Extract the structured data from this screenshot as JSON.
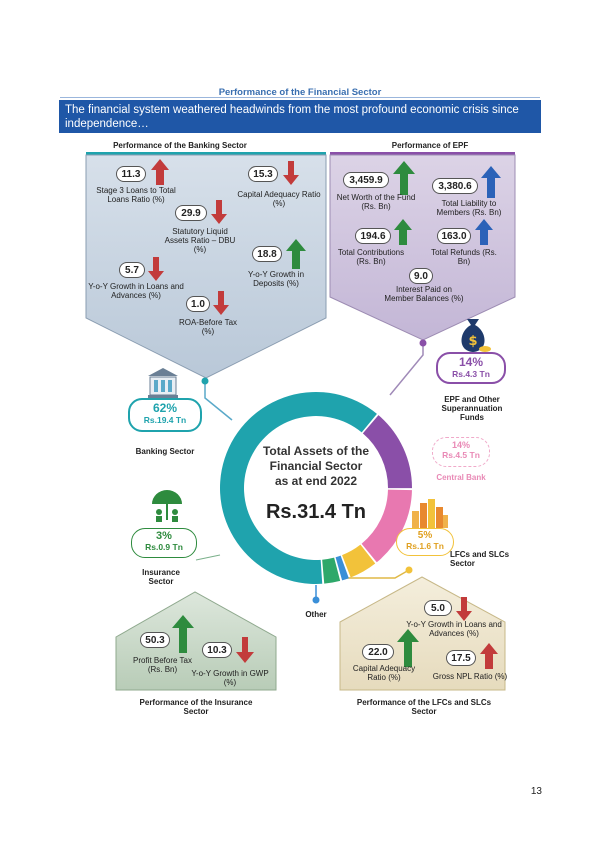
{
  "header": {
    "title": "Performance of the Financial Sector",
    "banner": "The financial system weathered headwinds from the most profound economic crisis since independence…"
  },
  "banking_performance": {
    "title": "Performance of the Banking Sector",
    "items": [
      {
        "value": "11.3",
        "label": "Stage 3 Loans to Total Loans Ratio (%)",
        "trend": "up",
        "color": "#c23b3b"
      },
      {
        "value": "15.3",
        "label": "Capital Adequacy Ratio (%)",
        "trend": "down",
        "color": "#c23b3b"
      },
      {
        "value": "29.9",
        "label": "Statutory Liquid Assets Ratio – DBU (%)",
        "trend": "down",
        "color": "#c23b3b"
      },
      {
        "value": "5.7",
        "label": "Y-o-Y Growth in Loans and Advances (%)",
        "trend": "down",
        "color": "#c23b3b"
      },
      {
        "value": "18.8",
        "label": "Y-o-Y Growth in Deposits (%)",
        "trend": "up",
        "color": "#2e8b3e"
      },
      {
        "value": "1.0",
        "label": "ROA-Before Tax (%)",
        "trend": "down",
        "color": "#c23b3b"
      }
    ]
  },
  "epf_performance": {
    "title": "Performance of EPF",
    "items": [
      {
        "value": "3,459.9",
        "label": "Net Worth of the Fund (Rs. Bn)",
        "trend": "up",
        "color": "#2e8b3e"
      },
      {
        "value": "3,380.6",
        "label": "Total Liability to Members (Rs. Bn)",
        "trend": "up",
        "color": "#2b62b8"
      },
      {
        "value": "194.6",
        "label": "Total Contributions (Rs. Bn)",
        "trend": "up",
        "color": "#2e8b3e"
      },
      {
        "value": "163.0",
        "label": "Total Refunds (Rs. Bn)",
        "trend": "up",
        "color": "#2b62b8"
      },
      {
        "value": "9.0",
        "label": "Interest Paid on Member Balances (%)",
        "trend": "none",
        "color": "#555555"
      }
    ]
  },
  "center": {
    "title": "Total Assets of the Financial Sector as at end 2022",
    "title_lines": [
      "Total Assets of the",
      "Financial Sector",
      "as at end 2022"
    ],
    "total": "Rs.31.4 Tn"
  },
  "segments": [
    {
      "name": "Banking Sector",
      "pct": "62%",
      "amount": "Rs.19.4 Tn",
      "share": 62,
      "color": "#1fa3ad"
    },
    {
      "name": "EPF and Other Superannuation Funds",
      "pct": "14%",
      "amount": "Rs.4.3 Tn",
      "share": 14,
      "color": "#8a4fa8"
    },
    {
      "name": "Central Bank",
      "pct": "14%",
      "amount": "Rs.4.5 Tn",
      "share": 14,
      "color": "#e878b0"
    },
    {
      "name": "LFCs and SLCs Sector",
      "pct": "5%",
      "amount": "Rs.1.6 Tn",
      "share": 5,
      "color": "#f2c23a"
    },
    {
      "name": "Other",
      "pct": "",
      "amount": "",
      "share": 1.5,
      "color": "#3a8fd8"
    },
    {
      "name": "Insurance Sector",
      "pct": "3%",
      "amount": "Rs.0.9 Tn",
      "share": 3,
      "color": "#2ea86a"
    }
  ],
  "labels": {
    "banking": "Banking Sector",
    "epf": "EPF and Other Superannuation Funds",
    "central": "Central Bank",
    "lfc": "LFCs and SLCs Sector",
    "insurance": "Insurance Sector",
    "other": "Other"
  },
  "insurance_performance": {
    "title": "Performance of the Insurance Sector",
    "items": [
      {
        "value": "50.3",
        "label": "Profit Before Tax (Rs. Bn)",
        "trend": "up",
        "color": "#2e8b3e"
      },
      {
        "value": "10.3",
        "label": "Y-o-Y Growth in GWP (%)",
        "trend": "down",
        "color": "#c23b3b"
      }
    ]
  },
  "lfc_performance": {
    "title": "Performance of the LFCs and SLCs Sector",
    "items": [
      {
        "value": "5.0",
        "label": "Y-o-Y Growth in Loans and Advances (%)",
        "trend": "down",
        "color": "#c23b3b"
      },
      {
        "value": "22.0",
        "label": "Capital Adequacy Ratio (%)",
        "trend": "up",
        "color": "#2e8b3e"
      },
      {
        "value": "17.5",
        "label": "Gross NPL Ratio (%)",
        "trend": "up",
        "color": "#c23b3b"
      }
    ]
  },
  "page_number": "13"
}
